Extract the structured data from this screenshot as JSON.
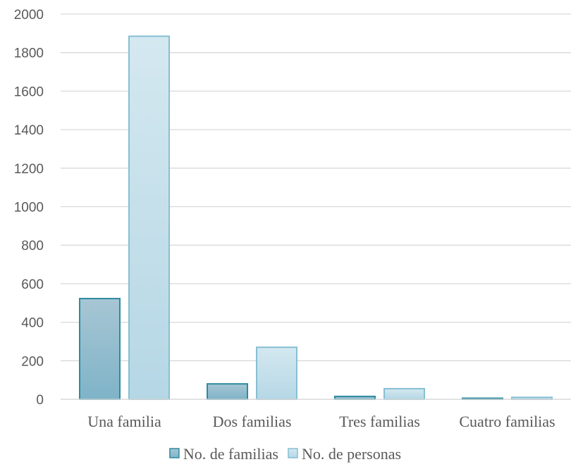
{
  "chart_data": {
    "type": "bar",
    "categories": [
      "Una familia",
      "Dos familias",
      "Tres familias",
      "Cuatro familias"
    ],
    "series": [
      {
        "name": "No. de familias",
        "values": [
          523,
          80,
          15,
          3
        ],
        "fill_top": "#a7c6d4",
        "fill_bottom": "#7fb3c8",
        "stroke": "#2e8ba0"
      },
      {
        "name": "No. de personas",
        "values": [
          1885,
          270,
          55,
          10
        ],
        "fill_top": "#d4e8f0",
        "fill_bottom": "#b5d7e5",
        "stroke": "#86bfd3"
      }
    ],
    "ylim": [
      0,
      2000
    ],
    "yticks": [
      0,
      200,
      400,
      600,
      800,
      1000,
      1200,
      1400,
      1600,
      1800,
      2000
    ],
    "grid": true,
    "legend_position": "bottom"
  }
}
